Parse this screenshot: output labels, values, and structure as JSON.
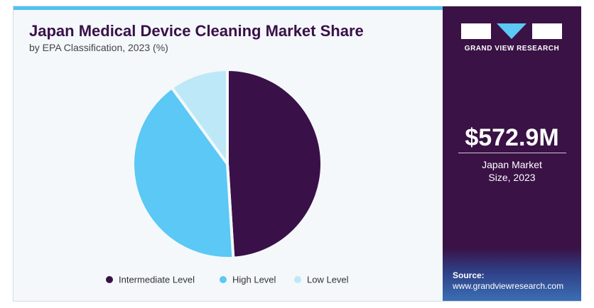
{
  "chart_data": {
    "type": "pie",
    "title": "Japan Medical Device Cleaning Market Share",
    "subtitle": "by EPA Classification, 2023 (%)",
    "categories": [
      "Intermediate Level",
      "High Level",
      "Low Level"
    ],
    "values": [
      49,
      41,
      10
    ],
    "colors": [
      "#3a1048",
      "#5bc8f5",
      "#bde8f8"
    ]
  },
  "sidebar": {
    "brand": "GRAND VIEW RESEARCH",
    "market_size": "$572.9M",
    "market_size_label": "Japan Market Size, 2023",
    "source_label": "Source:",
    "source_url": "www.grandviewresearch.com"
  }
}
